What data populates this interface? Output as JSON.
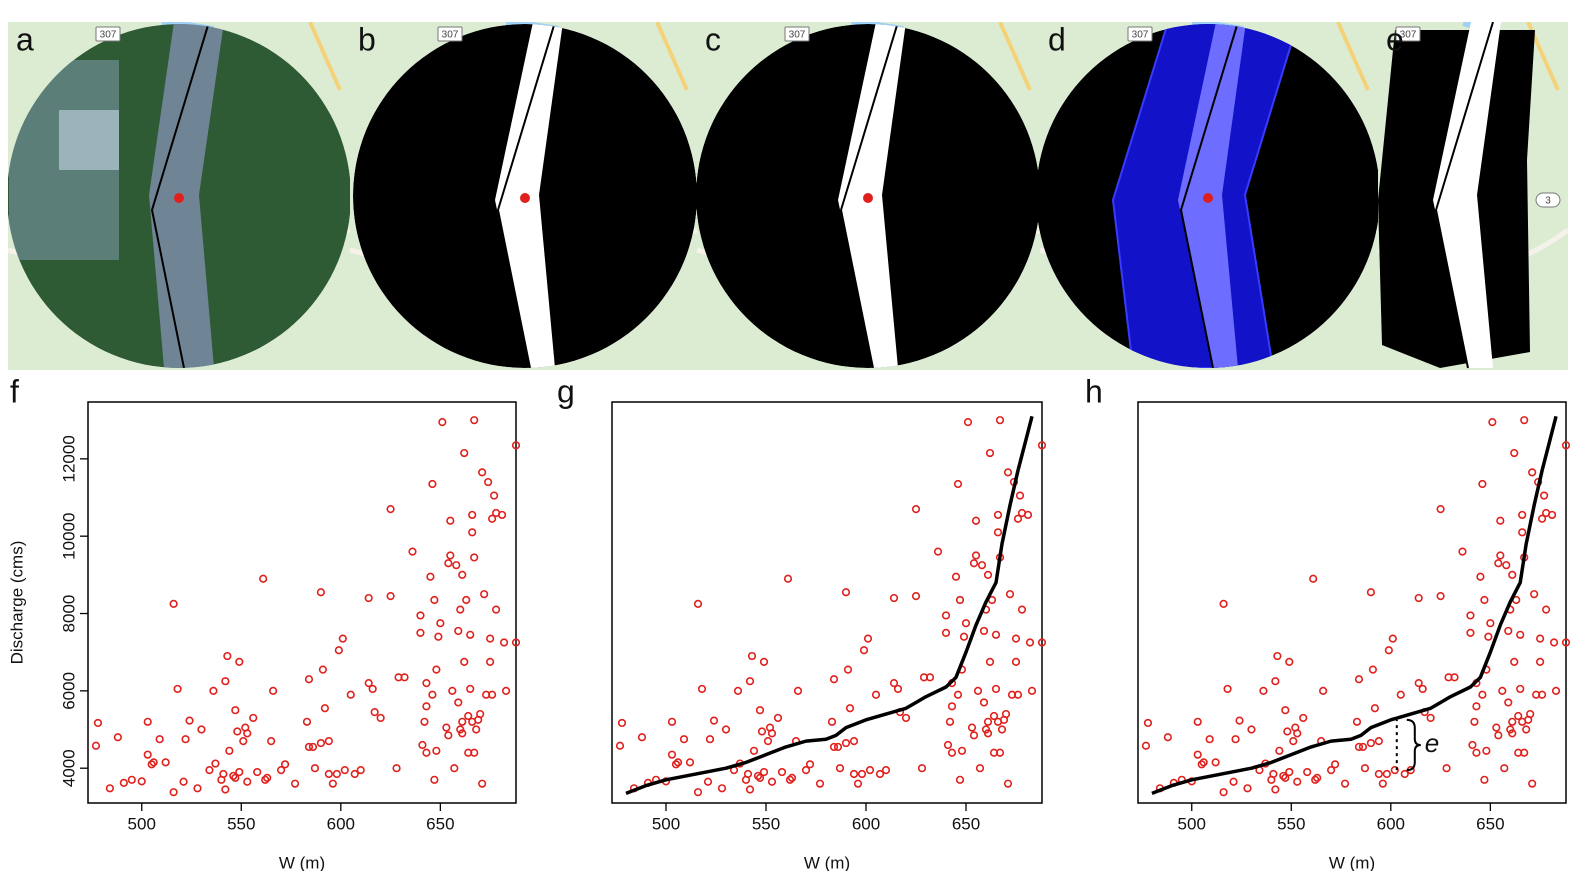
{
  "panels": [
    {
      "label": "a",
      "signs": [
        "307"
      ]
    },
    {
      "label": "b",
      "signs": [
        "307"
      ]
    },
    {
      "label": "c",
      "signs": [
        "307"
      ]
    },
    {
      "label": "d",
      "signs": [
        "307"
      ]
    },
    {
      "label": "e",
      "signs": [
        "307",
        "3"
      ]
    }
  ],
  "chart_data": [
    {
      "type": "scatter",
      "panel_label": "f",
      "xlabel": "W (m)",
      "ylabel": "Discharge (cms)",
      "color": "#e0201c",
      "xlim": [
        473,
        688
      ],
      "ylim": [
        3100,
        13470
      ],
      "xticks": [
        500,
        550,
        600,
        650
      ],
      "yticks": [
        4000,
        6000,
        8000,
        10000,
        12000
      ],
      "x": [
        477,
        478,
        484,
        488,
        491,
        495,
        500,
        503,
        503,
        505,
        506,
        509,
        512,
        516,
        516,
        518,
        521,
        522,
        524,
        528,
        530,
        534,
        536,
        537,
        540,
        541,
        542,
        542,
        543,
        544,
        546,
        547,
        547,
        548,
        549,
        549,
        551,
        552,
        553,
        553,
        556,
        558,
        561,
        562,
        563,
        565,
        566,
        570,
        572,
        577,
        583,
        584,
        584,
        586,
        587,
        590,
        590,
        591,
        592,
        594,
        594,
        596,
        598,
        599,
        601,
        602,
        605,
        607,
        610,
        614,
        614,
        616,
        617,
        620,
        625,
        625,
        628,
        629,
        632,
        636,
        640,
        640,
        641,
        642,
        643,
        643,
        643,
        645,
        646,
        646,
        647,
        647,
        648,
        648,
        649,
        650,
        651,
        653,
        654,
        654,
        655,
        655,
        656,
        657,
        658,
        659,
        659,
        660,
        660,
        661,
        661,
        661,
        662,
        662,
        663,
        664,
        664,
        665,
        665,
        666,
        666,
        666,
        667,
        667,
        667,
        668,
        669,
        670,
        671,
        671,
        672,
        673,
        674,
        675,
        675,
        676,
        676,
        677,
        678,
        678,
        681,
        682,
        683,
        688,
        688
      ],
      "values": [
        4580,
        5170,
        3480,
        4800,
        3620,
        3700,
        3660,
        4350,
        5200,
        4100,
        4150,
        4750,
        4150,
        3380,
        8250,
        6050,
        3650,
        4750,
        5230,
        3480,
        5000,
        3950,
        6000,
        4120,
        3700,
        3850,
        3450,
        6250,
        6900,
        4450,
        3800,
        3750,
        5500,
        4950,
        3900,
        6750,
        4700,
        5050,
        3650,
        4900,
        5300,
        3900,
        8900,
        3700,
        3750,
        4700,
        6000,
        3950,
        4100,
        3600,
        5200,
        4550,
        6300,
        4550,
        4000,
        8550,
        4650,
        6550,
        5550,
        3850,
        4700,
        3600,
        3850,
        7050,
        7350,
        3950,
        5900,
        3850,
        3950,
        6200,
        8400,
        6050,
        5450,
        5300,
        8450,
        10700,
        4000,
        6350,
        6350,
        9600,
        7500,
        7950,
        4600,
        5200,
        5600,
        6200,
        4400,
        8950,
        11350,
        5900,
        8350,
        3700,
        6550,
        4450,
        7400,
        7750,
        12950,
        5050,
        4850,
        9300,
        10400,
        9500,
        6000,
        4000,
        9250,
        7550,
        5700,
        8100,
        5000,
        4900,
        5200,
        9000,
        12150,
        6750,
        8350,
        5350,
        4400,
        6050,
        7450,
        10550,
        10100,
        5200,
        4400,
        9450,
        13000,
        5000,
        5250,
        5400,
        3600,
        11650,
        8500,
        5900,
        11400,
        7350,
        6750,
        5900,
        10450,
        11050,
        8100,
        10600,
        10550,
        7250,
        6000,
        12350,
        7250
      ]
    },
    {
      "type": "scatter",
      "panel_label": "g",
      "xlabel": "W (m)",
      "color": "#e0201c",
      "xlim": [
        473,
        688
      ],
      "ylim": [
        3100,
        13470
      ],
      "xticks": [
        500,
        550,
        600,
        650
      ],
      "x": [
        477,
        478,
        484,
        488,
        491,
        495,
        500,
        503,
        503,
        505,
        506,
        509,
        512,
        516,
        516,
        518,
        521,
        522,
        524,
        528,
        530,
        534,
        536,
        537,
        540,
        541,
        542,
        542,
        543,
        544,
        546,
        547,
        547,
        548,
        549,
        549,
        551,
        552,
        553,
        553,
        556,
        558,
        561,
        562,
        563,
        565,
        566,
        570,
        572,
        577,
        583,
        584,
        584,
        586,
        587,
        590,
        590,
        591,
        592,
        594,
        594,
        596,
        598,
        599,
        601,
        602,
        605,
        607,
        610,
        614,
        614,
        616,
        617,
        620,
        625,
        625,
        628,
        629,
        632,
        636,
        640,
        640,
        641,
        642,
        643,
        643,
        643,
        645,
        646,
        646,
        647,
        647,
        648,
        648,
        649,
        650,
        651,
        653,
        654,
        654,
        655,
        655,
        656,
        657,
        658,
        659,
        659,
        660,
        660,
        661,
        661,
        661,
        662,
        662,
        663,
        664,
        664,
        665,
        665,
        666,
        666,
        666,
        667,
        667,
        667,
        668,
        669,
        670,
        671,
        671,
        672,
        673,
        674,
        675,
        675,
        676,
        676,
        677,
        678,
        678,
        681,
        682,
        683,
        688,
        688
      ],
      "values": [
        4580,
        5170,
        3480,
        4800,
        3620,
        3700,
        3660,
        4350,
        5200,
        4100,
        4150,
        4750,
        4150,
        3380,
        8250,
        6050,
        3650,
        4750,
        5230,
        3480,
        5000,
        3950,
        6000,
        4120,
        3700,
        3850,
        3450,
        6250,
        6900,
        4450,
        3800,
        3750,
        5500,
        4950,
        3900,
        6750,
        4700,
        5050,
        3650,
        4900,
        5300,
        3900,
        8900,
        3700,
        3750,
        4700,
        6000,
        3950,
        4100,
        3600,
        5200,
        4550,
        6300,
        4550,
        4000,
        8550,
        4650,
        6550,
        5550,
        3850,
        4700,
        3600,
        3850,
        7050,
        7350,
        3950,
        5900,
        3850,
        3950,
        6200,
        8400,
        6050,
        5450,
        5300,
        8450,
        10700,
        4000,
        6350,
        6350,
        9600,
        7500,
        7950,
        4600,
        5200,
        5600,
        6200,
        4400,
        8950,
        11350,
        5900,
        8350,
        3700,
        6550,
        4450,
        7400,
        7750,
        12950,
        5050,
        4850,
        9300,
        10400,
        9500,
        6000,
        4000,
        9250,
        7550,
        5700,
        8100,
        5000,
        4900,
        5200,
        9000,
        12150,
        6750,
        8350,
        5350,
        4400,
        6050,
        7450,
        10550,
        10100,
        5200,
        4400,
        9450,
        13000,
        5000,
        5250,
        5400,
        3600,
        11650,
        8500,
        5900,
        11400,
        7350,
        6750,
        5900,
        10450,
        11050,
        8100,
        10600,
        10550,
        7250,
        6000,
        12350,
        7250
      ],
      "fit": {
        "color": "#000000",
        "x": [
          480,
          490,
          500,
          510,
          520,
          530,
          540,
          550,
          560,
          570,
          580,
          585,
          590,
          600,
          610,
          620,
          625,
          630,
          640,
          645,
          650,
          655,
          660,
          665,
          668,
          672,
          676,
          680,
          683
        ],
        "values": [
          3350,
          3550,
          3700,
          3800,
          3900,
          4000,
          4150,
          4350,
          4550,
          4700,
          4750,
          4850,
          5050,
          5250,
          5400,
          5550,
          5700,
          5850,
          6100,
          6350,
          7000,
          7700,
          8300,
          8800,
          9800,
          10800,
          11700,
          12500,
          13100
        ]
      }
    },
    {
      "type": "scatter",
      "panel_label": "h",
      "xlabel": "W (m)",
      "color": "#e0201c",
      "xlim": [
        473,
        688
      ],
      "ylim": [
        3100,
        13470
      ],
      "xticks": [
        500,
        550,
        600,
        650
      ],
      "x": [
        477,
        478,
        484,
        488,
        491,
        495,
        500,
        503,
        503,
        505,
        506,
        509,
        512,
        516,
        516,
        518,
        521,
        522,
        524,
        528,
        530,
        534,
        536,
        537,
        540,
        541,
        542,
        542,
        543,
        544,
        546,
        547,
        547,
        548,
        549,
        549,
        551,
        552,
        553,
        553,
        556,
        558,
        561,
        562,
        563,
        565,
        566,
        570,
        572,
        577,
        583,
        584,
        584,
        586,
        587,
        590,
        590,
        591,
        592,
        594,
        594,
        596,
        598,
        599,
        601,
        602,
        605,
        607,
        610,
        614,
        614,
        616,
        617,
        620,
        625,
        625,
        628,
        629,
        632,
        636,
        640,
        640,
        641,
        642,
        643,
        643,
        643,
        645,
        646,
        646,
        647,
        647,
        648,
        648,
        649,
        650,
        651,
        653,
        654,
        654,
        655,
        655,
        656,
        657,
        658,
        659,
        659,
        660,
        660,
        661,
        661,
        661,
        662,
        662,
        663,
        664,
        664,
        665,
        665,
        666,
        666,
        666,
        667,
        667,
        667,
        668,
        669,
        670,
        671,
        671,
        672,
        673,
        674,
        675,
        675,
        676,
        676,
        677,
        678,
        678,
        681,
        682,
        683,
        688,
        688
      ],
      "values": [
        4580,
        5170,
        3480,
        4800,
        3620,
        3700,
        3660,
        4350,
        5200,
        4100,
        4150,
        4750,
        4150,
        3380,
        8250,
        6050,
        3650,
        4750,
        5230,
        3480,
        5000,
        3950,
        6000,
        4120,
        3700,
        3850,
        3450,
        6250,
        6900,
        4450,
        3800,
        3750,
        5500,
        4950,
        3900,
        6750,
        4700,
        5050,
        3650,
        4900,
        5300,
        3900,
        8900,
        3700,
        3750,
        4700,
        6000,
        3950,
        4100,
        3600,
        5200,
        4550,
        6300,
        4550,
        4000,
        8550,
        4650,
        6550,
        5550,
        3850,
        4700,
        3600,
        3850,
        7050,
        7350,
        3950,
        5900,
        3850,
        3950,
        6200,
        8400,
        6050,
        5450,
        5300,
        8450,
        10700,
        4000,
        6350,
        6350,
        9600,
        7500,
        7950,
        4600,
        5200,
        5600,
        6200,
        4400,
        8950,
        11350,
        5900,
        8350,
        3700,
        6550,
        4450,
        7400,
        7750,
        12950,
        5050,
        4850,
        9300,
        10400,
        9500,
        6000,
        4000,
        9250,
        7550,
        5700,
        8100,
        5000,
        4900,
        5200,
        9000,
        12150,
        6750,
        8350,
        5350,
        4400,
        6050,
        7450,
        10550,
        10100,
        5200,
        4400,
        9450,
        13000,
        5000,
        5250,
        5400,
        3600,
        11650,
        8500,
        5900,
        11400,
        7350,
        6750,
        5900,
        10450,
        11050,
        8100,
        10600,
        10550,
        7250,
        6000,
        12350,
        7250
      ],
      "fit": {
        "color": "#000000",
        "x": [
          480,
          490,
          500,
          510,
          520,
          530,
          540,
          550,
          560,
          570,
          580,
          585,
          590,
          600,
          610,
          620,
          625,
          630,
          640,
          645,
          650,
          655,
          660,
          665,
          668,
          672,
          676,
          680,
          683
        ],
        "values": [
          3350,
          3550,
          3700,
          3800,
          3900,
          4000,
          4150,
          4350,
          4550,
          4700,
          4750,
          4850,
          5050,
          5250,
          5400,
          5550,
          5700,
          5850,
          6100,
          6350,
          7000,
          7700,
          8300,
          8800,
          9800,
          10800,
          11700,
          12500,
          13100
        ]
      },
      "annotation": {
        "text": "e",
        "x": 603,
        "y": [
          3950,
          5250
        ]
      }
    }
  ]
}
